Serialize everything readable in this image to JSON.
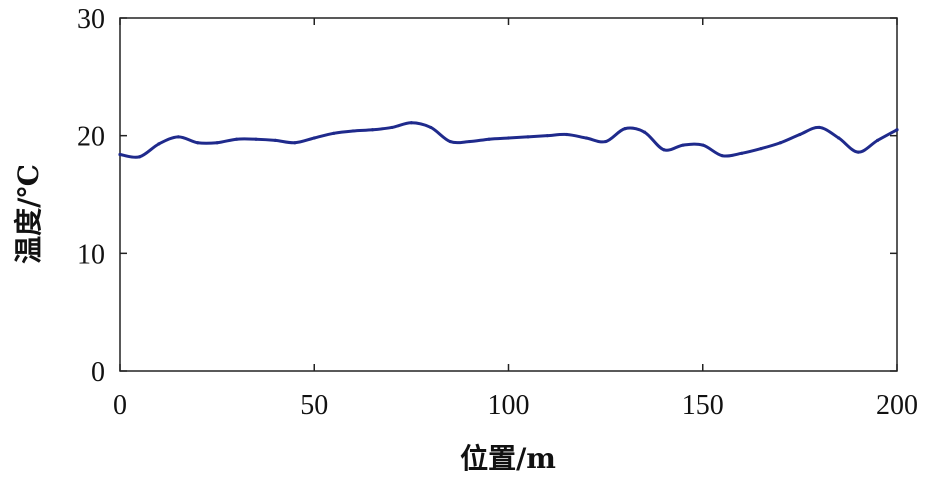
{
  "chart_data": {
    "type": "line",
    "xlabel": "位置/m",
    "ylabel": "温度/℃",
    "xlim": [
      0,
      200
    ],
    "ylim": [
      0,
      30
    ],
    "xticks": [
      0,
      50,
      100,
      150,
      200
    ],
    "yticks": [
      0,
      10,
      20,
      30
    ],
    "grid": false,
    "line_color": "#1f2a8c",
    "series": [
      {
        "x": [
          0,
          5,
          10,
          15,
          20,
          25,
          30,
          35,
          40,
          45,
          50,
          55,
          60,
          65,
          70,
          75,
          80,
          85,
          90,
          95,
          100,
          105,
          110,
          115,
          120,
          125,
          130,
          135,
          140,
          145,
          150,
          155,
          160,
          165,
          170,
          175,
          180,
          185,
          190,
          195,
          200
        ],
        "values": [
          18.4,
          18.2,
          19.3,
          19.9,
          19.4,
          19.4,
          19.7,
          19.7,
          19.6,
          19.4,
          19.8,
          20.2,
          20.4,
          20.5,
          20.7,
          21.1,
          20.7,
          19.5,
          19.5,
          19.7,
          19.8,
          19.9,
          20.0,
          20.1,
          19.8,
          19.5,
          20.6,
          20.3,
          18.8,
          19.2,
          19.2,
          18.3,
          18.5,
          18.9,
          19.4,
          20.1,
          20.7,
          19.8,
          18.6,
          19.6,
          20.5
        ]
      }
    ]
  }
}
